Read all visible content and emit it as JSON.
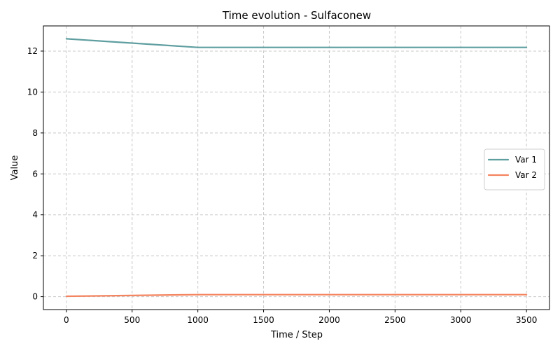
{
  "chart_data": {
    "type": "line",
    "title": "Time evolution - Sulfaconew",
    "xlabel": "Time / Step",
    "ylabel": "Value",
    "xlim": [
      -175,
      3675
    ],
    "ylim": [
      -0.63,
      13.23
    ],
    "xticks": [
      0,
      500,
      1000,
      1500,
      2000,
      2500,
      3000,
      3500
    ],
    "yticks": [
      0,
      2,
      4,
      6,
      8,
      10,
      12
    ],
    "grid": true,
    "legend_position": "center-right",
    "series": [
      {
        "name": "Var 1",
        "color": "#5f9ea0",
        "x": [
          0,
          1000,
          2000,
          3000,
          3500
        ],
        "y": [
          12.6,
          12.18,
          12.18,
          12.18,
          12.18
        ]
      },
      {
        "name": "Var 2",
        "color": "#f4845f",
        "x": [
          0,
          1000,
          2000,
          3000,
          3500
        ],
        "y": [
          0.02,
          0.1,
          0.1,
          0.1,
          0.1
        ]
      }
    ]
  }
}
